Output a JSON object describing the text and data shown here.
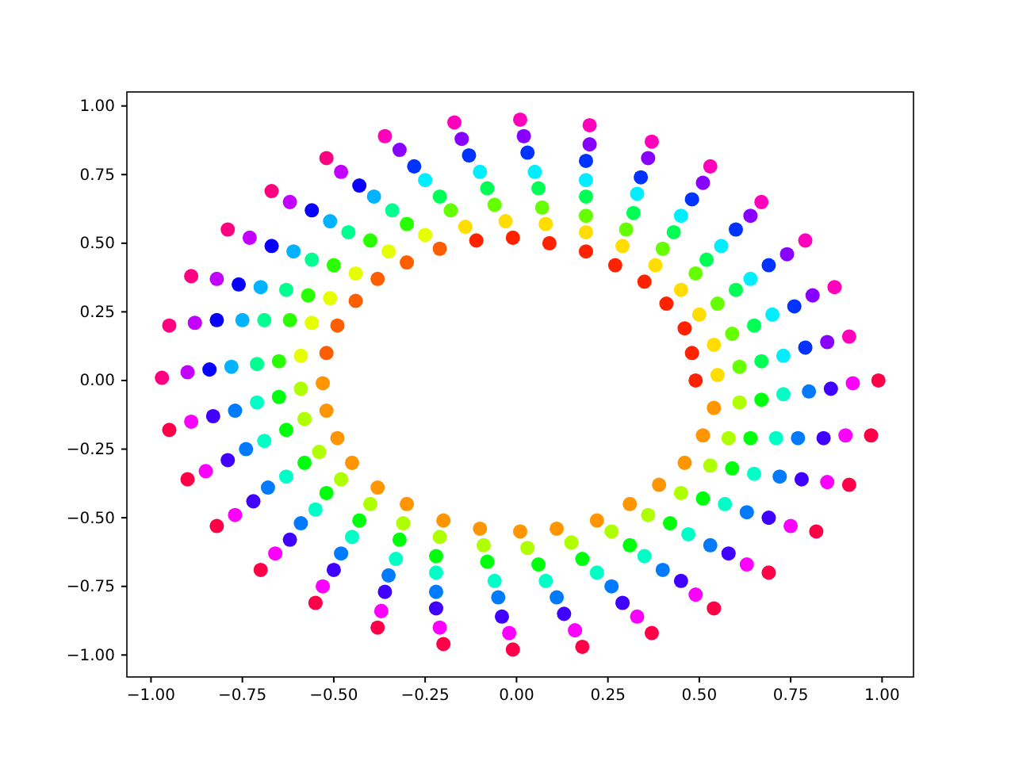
{
  "chart_data": {
    "type": "scatter",
    "marker": "circle",
    "xlim": [
      -1.066,
      1.086
    ],
    "ylim": [
      -1.08,
      1.051
    ],
    "xticks": [
      {
        "value": -1,
        "label": "−1.00"
      },
      {
        "value": -0.75,
        "label": "−0.75"
      },
      {
        "value": -0.5,
        "label": "−0.50"
      },
      {
        "value": -0.25,
        "label": "−0.25"
      },
      {
        "value": 0,
        "label": "0.00"
      },
      {
        "value": 0.25,
        "label": "0.25"
      },
      {
        "value": 0.5,
        "label": "0.50"
      },
      {
        "value": 0.75,
        "label": "0.75"
      },
      {
        "value": 1,
        "label": "1.00"
      }
    ],
    "yticks": [
      {
        "value": -1,
        "label": "−1.00"
      },
      {
        "value": -0.75,
        "label": "−0.75"
      },
      {
        "value": -0.5,
        "label": "−0.50"
      },
      {
        "value": -0.25,
        "label": "−0.25"
      },
      {
        "value": 0,
        "label": "0.00"
      },
      {
        "value": 0.25,
        "label": "0.25"
      },
      {
        "value": 0.5,
        "label": "0.50"
      },
      {
        "value": 0.75,
        "label": "0.75"
      },
      {
        "value": 1,
        "label": "1.00"
      }
    ],
    "series": [
      {
        "x": [
          0.09,
          0.08,
          0.07,
          0.06,
          0.05,
          0.03,
          0.02,
          0.01
        ],
        "values": [
          0.5,
          0.57,
          0.63,
          0.7,
          0.76,
          0.83,
          0.89,
          0.95
        ],
        "colors": [
          "#ff2200",
          "#ffdd00",
          "#66ff00",
          "#00ff55",
          "#00eeff",
          "#0033ff",
          "#8800ff",
          "#ff00bb"
        ]
      },
      {
        "x": [
          0.19,
          0.19,
          0.19,
          0.19,
          0.19,
          0.19,
          0.2,
          0.2
        ],
        "values": [
          0.47,
          0.54,
          0.6,
          0.67,
          0.73,
          0.8,
          0.86,
          0.93
        ],
        "colors": [
          "#ff2200",
          "#ffdd00",
          "#66ff00",
          "#00ff55",
          "#00eeff",
          "#0033ff",
          "#8800ff",
          "#ff00bb"
        ]
      },
      {
        "x": [
          0.27,
          0.29,
          0.3,
          0.32,
          0.33,
          0.34,
          0.36,
          0.37
        ],
        "values": [
          0.42,
          0.49,
          0.55,
          0.61,
          0.68,
          0.74,
          0.81,
          0.87
        ],
        "colors": [
          "#ff2200",
          "#ffdd00",
          "#66ff00",
          "#00ff55",
          "#00eeff",
          "#0033ff",
          "#8800ff",
          "#ff00bb"
        ]
      },
      {
        "x": [
          0.35,
          0.38,
          0.4,
          0.43,
          0.45,
          0.48,
          0.51,
          0.53
        ],
        "values": [
          0.36,
          0.42,
          0.48,
          0.54,
          0.6,
          0.66,
          0.72,
          0.78
        ],
        "colors": [
          "#ff2200",
          "#ffdd00",
          "#66ff00",
          "#00ff55",
          "#00eeff",
          "#0033ff",
          "#8800ff",
          "#ff00bb"
        ]
      },
      {
        "x": [
          0.41,
          0.45,
          0.49,
          0.52,
          0.56,
          0.6,
          0.64,
          0.67
        ],
        "values": [
          0.28,
          0.33,
          0.39,
          0.44,
          0.49,
          0.55,
          0.6,
          0.65
        ],
        "colors": [
          "#ff2200",
          "#ffdd00",
          "#66ff00",
          "#00ff55",
          "#00eeff",
          "#0033ff",
          "#8800ff",
          "#ff00bb"
        ]
      },
      {
        "x": [
          0.46,
          0.5,
          0.55,
          0.6,
          0.64,
          0.69,
          0.74,
          0.79
        ],
        "values": [
          0.19,
          0.24,
          0.28,
          0.33,
          0.37,
          0.42,
          0.46,
          0.51
        ],
        "colors": [
          "#ff2200",
          "#ffdd00",
          "#66ff00",
          "#00ff55",
          "#00eeff",
          "#0033ff",
          "#8800ff",
          "#ff00bb"
        ]
      },
      {
        "x": [
          0.48,
          0.54,
          0.59,
          0.65,
          0.7,
          0.76,
          0.81,
          0.87
        ],
        "values": [
          0.1,
          0.13,
          0.17,
          0.2,
          0.24,
          0.27,
          0.31,
          0.34
        ],
        "colors": [
          "#ff2200",
          "#ffdd00",
          "#66ff00",
          "#00ff55",
          "#00eeff",
          "#0033ff",
          "#8800ff",
          "#ff00bb"
        ]
      },
      {
        "x": [
          0.49,
          0.55,
          0.61,
          0.67,
          0.73,
          0.79,
          0.85,
          0.91
        ],
        "values": [
          0.0,
          0.02,
          0.05,
          0.07,
          0.09,
          0.12,
          0.14,
          0.16
        ],
        "colors": [
          "#ff2200",
          "#ffdd00",
          "#66ff00",
          "#00ff55",
          "#00eeff",
          "#0033ff",
          "#8800ff",
          "#ff00bb"
        ]
      },
      {
        "x": [
          0.54,
          0.61,
          0.67,
          0.73,
          0.8,
          0.86,
          0.92,
          0.99
        ],
        "values": [
          -0.1,
          -0.08,
          -0.07,
          -0.05,
          -0.04,
          -0.03,
          -0.01,
          0.0
        ],
        "colors": [
          "#ff9500",
          "#aeff00",
          "#00ff0d",
          "#00ffc7",
          "#007bff",
          "#4000ff",
          "#fb00ff",
          "#ff0048"
        ]
      },
      {
        "x": [
          0.51,
          0.58,
          0.64,
          0.71,
          0.77,
          0.84,
          0.9,
          0.97
        ],
        "values": [
          -0.2,
          -0.21,
          -0.21,
          -0.21,
          -0.21,
          -0.21,
          -0.2,
          -0.2
        ],
        "colors": [
          "#ff9500",
          "#aeff00",
          "#00ff0d",
          "#00ffc7",
          "#007bff",
          "#4000ff",
          "#fb00ff",
          "#ff0048"
        ]
      },
      {
        "x": [
          0.46,
          0.53,
          0.59,
          0.65,
          0.72,
          0.78,
          0.85,
          0.91
        ],
        "values": [
          -0.3,
          -0.31,
          -0.32,
          -0.34,
          -0.35,
          -0.36,
          -0.37,
          -0.38
        ],
        "colors": [
          "#ff9500",
          "#aeff00",
          "#00ff0d",
          "#00ffc7",
          "#007bff",
          "#4000ff",
          "#fb00ff",
          "#ff0048"
        ]
      },
      {
        "x": [
          0.39,
          0.45,
          0.51,
          0.57,
          0.63,
          0.69,
          0.75,
          0.82
        ],
        "values": [
          -0.38,
          -0.41,
          -0.43,
          -0.45,
          -0.48,
          -0.5,
          -0.53,
          -0.55
        ],
        "colors": [
          "#ff9500",
          "#aeff00",
          "#00ff0d",
          "#00ffc7",
          "#007bff",
          "#4000ff",
          "#fb00ff",
          "#ff0048"
        ]
      },
      {
        "x": [
          0.31,
          0.36,
          0.42,
          0.47,
          0.53,
          0.58,
          0.63,
          0.69
        ],
        "values": [
          -0.45,
          -0.49,
          -0.52,
          -0.56,
          -0.6,
          -0.63,
          -0.67,
          -0.7
        ],
        "colors": [
          "#ff9500",
          "#aeff00",
          "#00ff0d",
          "#00ffc7",
          "#007bff",
          "#4000ff",
          "#fb00ff",
          "#ff0048"
        ]
      },
      {
        "x": [
          0.22,
          0.26,
          0.31,
          0.35,
          0.4,
          0.45,
          0.49,
          0.54
        ],
        "values": [
          -0.51,
          -0.55,
          -0.6,
          -0.64,
          -0.69,
          -0.73,
          -0.78,
          -0.83
        ],
        "colors": [
          "#ff9500",
          "#aeff00",
          "#00ff0d",
          "#00ffc7",
          "#007bff",
          "#4000ff",
          "#fb00ff",
          "#ff0048"
        ]
      },
      {
        "x": [
          0.11,
          0.15,
          0.18,
          0.22,
          0.26,
          0.29,
          0.33,
          0.37
        ],
        "values": [
          -0.54,
          -0.59,
          -0.65,
          -0.7,
          -0.75,
          -0.81,
          -0.86,
          -0.92
        ],
        "colors": [
          "#ff9500",
          "#aeff00",
          "#00ff0d",
          "#00ffc7",
          "#007bff",
          "#4000ff",
          "#fb00ff",
          "#ff0048"
        ]
      },
      {
        "x": [
          0.01,
          0.03,
          0.06,
          0.08,
          0.11,
          0.13,
          0.16,
          0.18
        ],
        "values": [
          -0.55,
          -0.61,
          -0.67,
          -0.73,
          -0.79,
          -0.85,
          -0.91,
          -0.97
        ],
        "colors": [
          "#ff9500",
          "#aeff00",
          "#00ff0d",
          "#00ffc7",
          "#007bff",
          "#4000ff",
          "#fb00ff",
          "#ff0048"
        ]
      },
      {
        "x": [
          -0.1,
          -0.09,
          -0.08,
          -0.06,
          -0.05,
          -0.04,
          -0.02,
          -0.01
        ],
        "values": [
          -0.54,
          -0.6,
          -0.66,
          -0.73,
          -0.79,
          -0.86,
          -0.92,
          -0.98
        ],
        "colors": [
          "#ff9500",
          "#aeff00",
          "#00ff0d",
          "#00ffc7",
          "#007bff",
          "#4000ff",
          "#fb00ff",
          "#ff0048"
        ]
      },
      {
        "x": [
          -0.2,
          -0.21,
          -0.22,
          -0.22,
          -0.22,
          -0.22,
          -0.21,
          -0.2
        ],
        "values": [
          -0.51,
          -0.57,
          -0.64,
          -0.7,
          -0.77,
          -0.83,
          -0.9,
          -0.96
        ],
        "colors": [
          "#ff9500",
          "#aeff00",
          "#00ff0d",
          "#00ffc7",
          "#007bff",
          "#4000ff",
          "#fb00ff",
          "#ff0048"
        ]
      },
      {
        "x": [
          -0.3,
          -0.31,
          -0.32,
          -0.33,
          -0.35,
          -0.36,
          -0.37,
          -0.38
        ],
        "values": [
          -0.45,
          -0.52,
          -0.58,
          -0.65,
          -0.71,
          -0.77,
          -0.84,
          -0.9
        ],
        "colors": [
          "#ff9500",
          "#aeff00",
          "#00ff0d",
          "#00ffc7",
          "#007bff",
          "#4000ff",
          "#fb00ff",
          "#ff0048"
        ]
      },
      {
        "x": [
          -0.38,
          -0.4,
          -0.43,
          -0.45,
          -0.48,
          -0.5,
          -0.53,
          -0.55
        ],
        "values": [
          -0.39,
          -0.45,
          -0.51,
          -0.57,
          -0.63,
          -0.69,
          -0.75,
          -0.81
        ],
        "colors": [
          "#ff9500",
          "#aeff00",
          "#00ff0d",
          "#00ffc7",
          "#007bff",
          "#4000ff",
          "#fb00ff",
          "#ff0048"
        ]
      },
      {
        "x": [
          -0.45,
          -0.48,
          -0.52,
          -0.55,
          -0.59,
          -0.62,
          -0.66,
          -0.7
        ],
        "values": [
          -0.3,
          -0.36,
          -0.41,
          -0.47,
          -0.52,
          -0.58,
          -0.63,
          -0.69
        ],
        "colors": [
          "#ff9500",
          "#aeff00",
          "#00ff0d",
          "#00ffc7",
          "#007bff",
          "#4000ff",
          "#fb00ff",
          "#ff0048"
        ]
      },
      {
        "x": [
          -0.49,
          -0.54,
          -0.58,
          -0.63,
          -0.68,
          -0.72,
          -0.77,
          -0.82
        ],
        "values": [
          -0.21,
          -0.26,
          -0.3,
          -0.35,
          -0.39,
          -0.44,
          -0.49,
          -0.53
        ],
        "colors": [
          "#ff9500",
          "#aeff00",
          "#00ff0d",
          "#00ffc7",
          "#007bff",
          "#4000ff",
          "#fb00ff",
          "#ff0048"
        ]
      },
      {
        "x": [
          -0.52,
          -0.58,
          -0.63,
          -0.69,
          -0.74,
          -0.79,
          -0.85,
          -0.9
        ],
        "values": [
          -0.11,
          -0.14,
          -0.18,
          -0.22,
          -0.25,
          -0.29,
          -0.33,
          -0.36
        ],
        "colors": [
          "#ff9500",
          "#aeff00",
          "#00ff0d",
          "#00ffc7",
          "#007bff",
          "#4000ff",
          "#fb00ff",
          "#ff0048"
        ]
      },
      {
        "x": [
          -0.53,
          -0.59,
          -0.65,
          -0.71,
          -0.77,
          -0.83,
          -0.89,
          -0.95
        ],
        "values": [
          -0.01,
          -0.03,
          -0.06,
          -0.08,
          -0.11,
          -0.13,
          -0.15,
          -0.18
        ],
        "colors": [
          "#ff9500",
          "#aeff00",
          "#00ff0d",
          "#00ffc7",
          "#007bff",
          "#4000ff",
          "#fb00ff",
          "#ff0048"
        ]
      },
      {
        "x": [
          -0.52,
          -0.59,
          -0.65,
          -0.71,
          -0.78,
          -0.84,
          -0.9,
          -0.97
        ],
        "values": [
          0.1,
          0.09,
          0.07,
          0.06,
          0.05,
          0.04,
          0.03,
          0.01
        ],
        "colors": [
          "#ff5e00",
          "#e6ff00",
          "#2aff00",
          "#00ff91",
          "#00b2ff",
          "#0800ff",
          "#c300ff",
          "#ff0080"
        ]
      },
      {
        "x": [
          -0.49,
          -0.56,
          -0.62,
          -0.69,
          -0.75,
          -0.82,
          -0.88,
          -0.95
        ],
        "values": [
          0.2,
          0.21,
          0.22,
          0.22,
          0.22,
          0.22,
          0.21,
          0.2
        ],
        "colors": [
          "#ff5e00",
          "#e6ff00",
          "#2aff00",
          "#00ff91",
          "#00b2ff",
          "#0800ff",
          "#c300ff",
          "#ff0080"
        ]
      },
      {
        "x": [
          -0.44,
          -0.51,
          -0.57,
          -0.63,
          -0.7,
          -0.76,
          -0.82,
          -0.89
        ],
        "values": [
          0.29,
          0.3,
          0.31,
          0.33,
          0.34,
          0.35,
          0.37,
          0.38
        ],
        "colors": [
          "#ff5e00",
          "#e6ff00",
          "#2aff00",
          "#00ff91",
          "#00b2ff",
          "#0800ff",
          "#c300ff",
          "#ff0080"
        ]
      },
      {
        "x": [
          -0.38,
          -0.44,
          -0.5,
          -0.56,
          -0.61,
          -0.67,
          -0.73,
          -0.79
        ],
        "values": [
          0.37,
          0.39,
          0.42,
          0.44,
          0.47,
          0.49,
          0.52,
          0.55
        ],
        "colors": [
          "#ff5e00",
          "#e6ff00",
          "#2aff00",
          "#00ff91",
          "#00b2ff",
          "#0800ff",
          "#c300ff",
          "#ff0080"
        ]
      },
      {
        "x": [
          -0.3,
          -0.35,
          -0.4,
          -0.46,
          -0.51,
          -0.56,
          -0.62,
          -0.67
        ],
        "values": [
          0.43,
          0.47,
          0.51,
          0.54,
          0.58,
          0.62,
          0.65,
          0.69
        ],
        "colors": [
          "#ff5e00",
          "#e6ff00",
          "#2aff00",
          "#00ff91",
          "#00b2ff",
          "#0800ff",
          "#c300ff",
          "#ff0080"
        ]
      },
      {
        "x": [
          -0.21,
          -0.25,
          -0.3,
          -0.34,
          -0.39,
          -0.43,
          -0.48,
          -0.52
        ],
        "values": [
          0.48,
          0.53,
          0.57,
          0.62,
          0.67,
          0.71,
          0.76,
          0.81
        ],
        "colors": [
          "#ff5e00",
          "#e6ff00",
          "#2aff00",
          "#00ff91",
          "#00b2ff",
          "#0800ff",
          "#c300ff",
          "#ff0080"
        ]
      },
      {
        "x": [
          -0.11,
          -0.14,
          -0.18,
          -0.21,
          -0.25,
          -0.28,
          -0.32,
          -0.36
        ],
        "values": [
          0.51,
          0.56,
          0.62,
          0.67,
          0.73,
          0.78,
          0.84,
          0.89
        ],
        "colors": [
          "#ff2200",
          "#ffdd00",
          "#66ff00",
          "#00ff55",
          "#00eeff",
          "#0033ff",
          "#8800ff",
          "#ff00bb"
        ]
      },
      {
        "x": [
          -0.01,
          -0.03,
          -0.06,
          -0.08,
          -0.1,
          -0.13,
          -0.15,
          -0.17
        ],
        "values": [
          0.52,
          0.58,
          0.64,
          0.7,
          0.76,
          0.82,
          0.88,
          0.94
        ],
        "colors": [
          "#ff2200",
          "#ffdd00",
          "#66ff00",
          "#00ff55",
          "#00eeff",
          "#0033ff",
          "#8800ff",
          "#ff00bb"
        ]
      }
    ]
  }
}
